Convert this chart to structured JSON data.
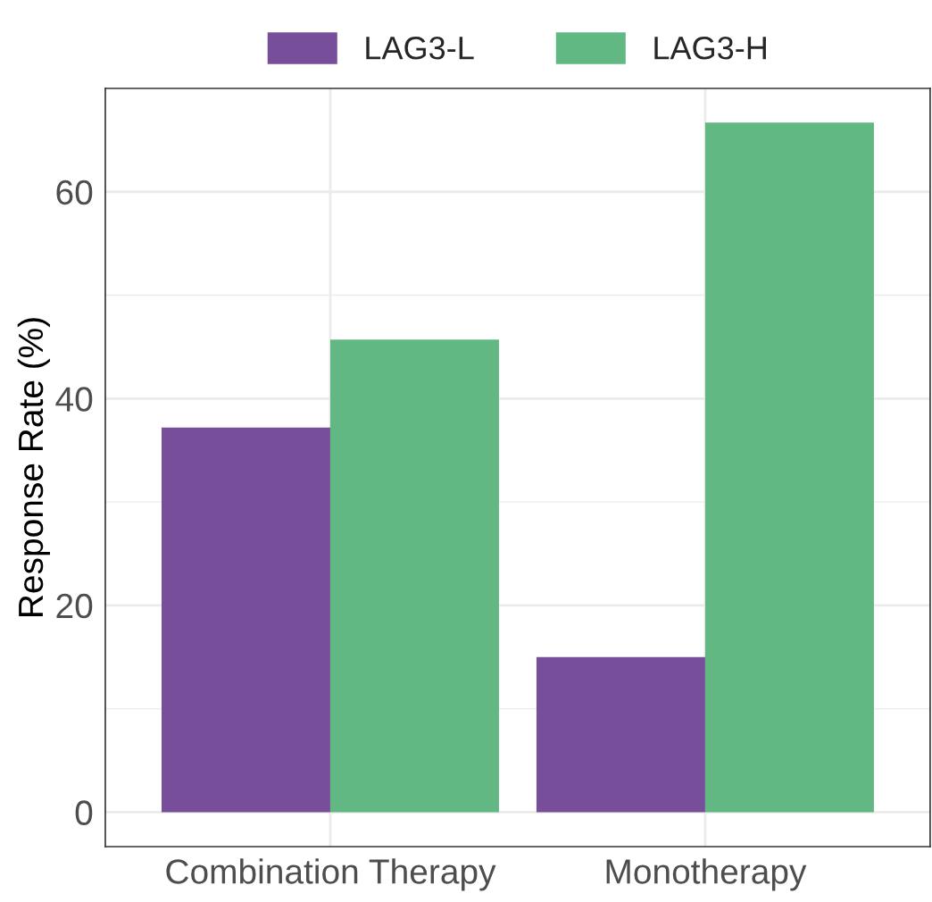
{
  "chart_data": {
    "type": "bar",
    "ylabel": "Response Rate (%)",
    "categories": [
      "Combination Therapy",
      "Monotherapy"
    ],
    "series": [
      {
        "name": "LAG3-L",
        "color": "#774e99",
        "values": [
          37.2,
          15.0
        ]
      },
      {
        "name": "LAG3-H",
        "color": "#61b882",
        "values": [
          45.7,
          66.7
        ]
      }
    ],
    "ylim": [
      -3.33,
      70.0
    ],
    "yticks": [
      0,
      20,
      40,
      60
    ],
    "grid": true,
    "legend": "top"
  }
}
